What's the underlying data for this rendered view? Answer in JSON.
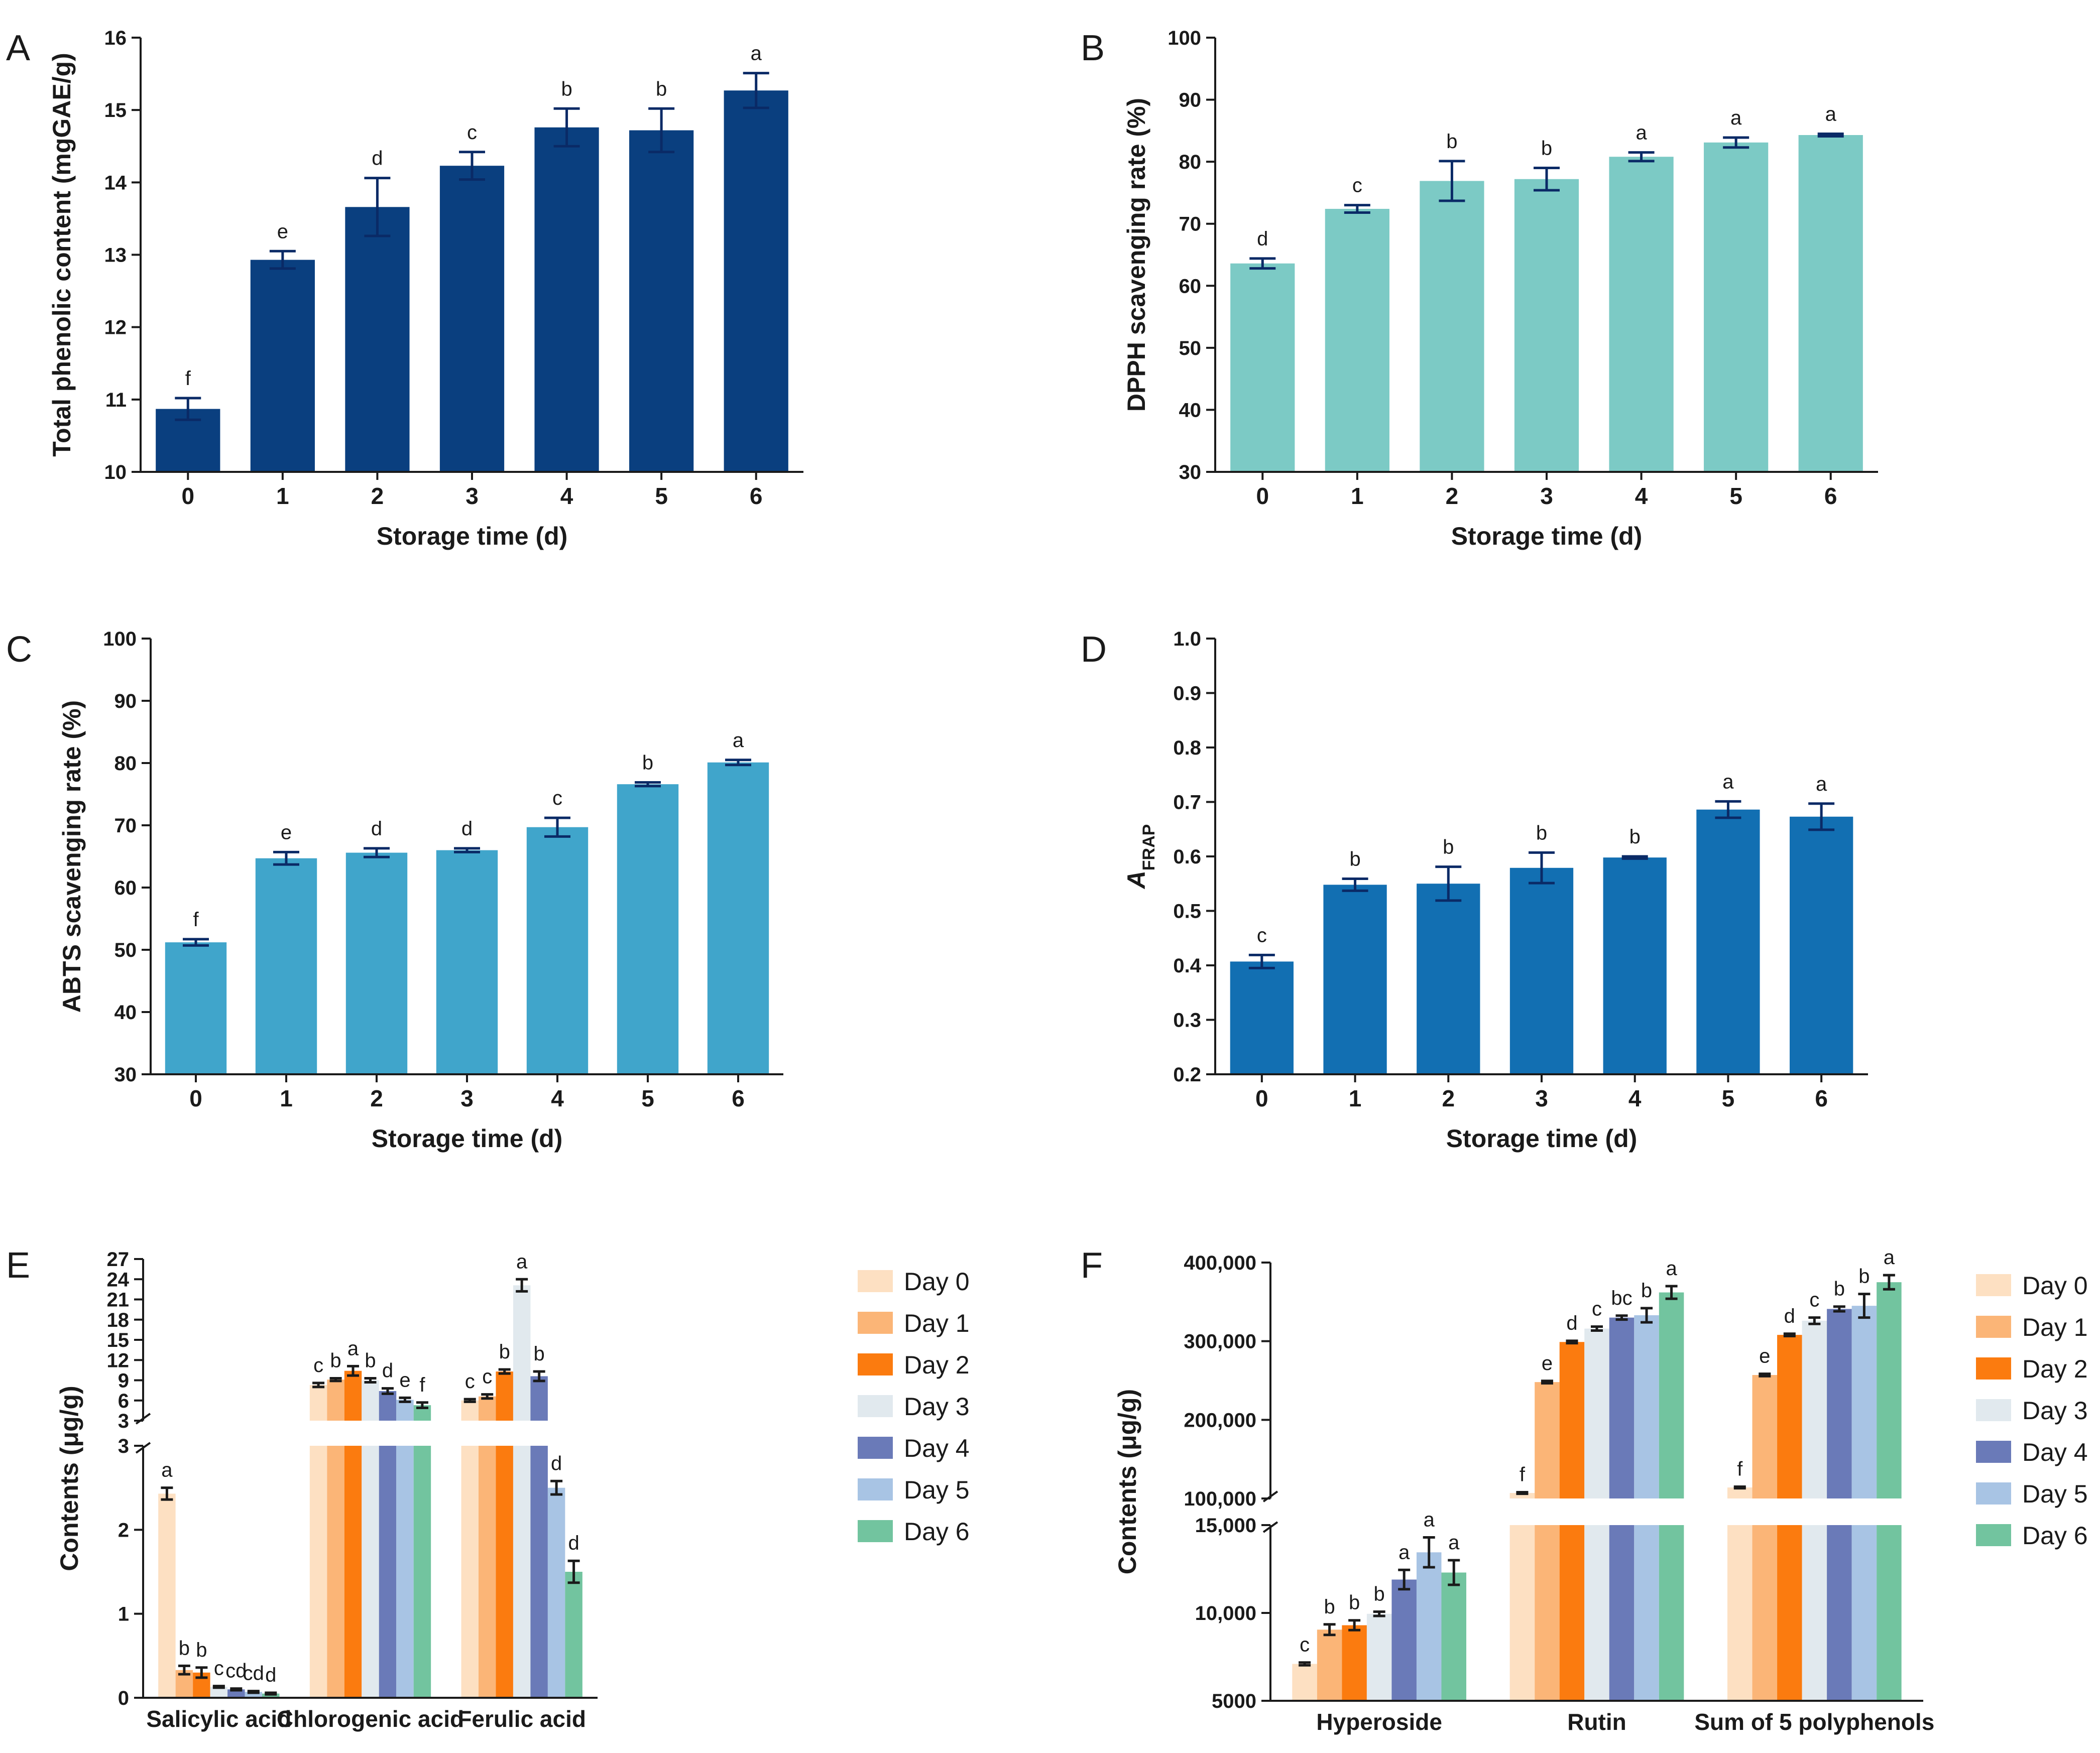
{
  "colors": {
    "A": "#0a3f7f",
    "B": "#7ccac5",
    "C": "#40a5cb",
    "D": "#126fb2",
    "error": "#0a2a66",
    "days": [
      "#fde0c2",
      "#fbb577",
      "#fb7b0f",
      "#e1e9ee",
      "#6a7ab8",
      "#a8c4e4",
      "#72c49f"
    ]
  },
  "chart_data": [
    {
      "panel": "A",
      "type": "bar",
      "xlabel": "Storage time (d)",
      "ylabel": "Total phenolic content (mgGAE/g)",
      "categories": [
        "0",
        "1",
        "2",
        "3",
        "4",
        "5",
        "6"
      ],
      "values": [
        10.87,
        12.93,
        13.66,
        14.23,
        14.76,
        14.72,
        15.27
      ],
      "errors": [
        0.15,
        0.12,
        0.4,
        0.19,
        0.26,
        0.3,
        0.24
      ],
      "letters": [
        "f",
        "e",
        "d",
        "c",
        "b",
        "b",
        "a"
      ],
      "ylim": [
        10,
        16
      ],
      "yticks": [
        "10",
        "11",
        "12",
        "13",
        "14",
        "15",
        "16"
      ]
    },
    {
      "panel": "B",
      "type": "bar",
      "xlabel": "Storage time (d)",
      "ylabel": "DPPH scavenging rate (%)",
      "categories": [
        "0",
        "1",
        "2",
        "3",
        "4",
        "5",
        "6"
      ],
      "values": [
        63.6,
        72.4,
        76.9,
        77.2,
        80.8,
        83.1,
        84.3
      ],
      "errors": [
        0.8,
        0.6,
        3.2,
        1.8,
        0.7,
        0.8,
        0.2
      ],
      "letters": [
        "d",
        "c",
        "b",
        "b",
        "a",
        "a",
        "a"
      ],
      "ylim": [
        30,
        100
      ],
      "yticks": [
        "30",
        "40",
        "50",
        "60",
        "70",
        "80",
        "90",
        "100"
      ]
    },
    {
      "panel": "C",
      "type": "bar",
      "xlabel": "Storage time (d)",
      "ylabel": "ABTS scavenging rate (%)",
      "categories": [
        "0",
        "1",
        "2",
        "3",
        "4",
        "5",
        "6"
      ],
      "values": [
        51.2,
        64.7,
        65.6,
        66.0,
        69.7,
        76.6,
        80.1
      ],
      "errors": [
        0.5,
        1.0,
        0.7,
        0.3,
        1.5,
        0.3,
        0.4
      ],
      "letters": [
        "f",
        "e",
        "d",
        "d",
        "c",
        "b",
        "a"
      ],
      "ylim": [
        30,
        100
      ],
      "yticks": [
        "30",
        "40",
        "50",
        "60",
        "70",
        "80",
        "90",
        "100"
      ]
    },
    {
      "panel": "D",
      "type": "bar",
      "xlabel": "Storage time (d)",
      "ylabel_main": "A",
      "ylabel_sub": "FRAP",
      "categories": [
        "0",
        "1",
        "2",
        "3",
        "4",
        "5",
        "6"
      ],
      "values": [
        0.407,
        0.548,
        0.55,
        0.579,
        0.598,
        0.686,
        0.673
      ],
      "errors": [
        0.012,
        0.011,
        0.031,
        0.028,
        0.002,
        0.015,
        0.024
      ],
      "letters": [
        "c",
        "b",
        "b",
        "b",
        "b",
        "a",
        "a"
      ],
      "ylim": [
        0.2,
        1.0
      ],
      "yticks": [
        "0.2",
        "0.3",
        "0.4",
        "0.5",
        "0.6",
        "0.7",
        "0.8",
        "0.9",
        "1.0"
      ]
    },
    {
      "panel": "E",
      "type": "bar",
      "ylabel": "Contents (μg/g)",
      "categories": [
        "Salicylic acid",
        "Chlorogenic acid",
        "Ferulic acid"
      ],
      "legend": [
        "Day 0",
        "Day 1",
        "Day 2",
        "Day 3",
        "Day 4",
        "Day 5",
        "Day 6"
      ],
      "axis_break": [
        3,
        3
      ],
      "lower_ylim": [
        0,
        3
      ],
      "upper_ylim": [
        3,
        27
      ],
      "lower_ticks": [
        "0",
        "1",
        "2",
        "3"
      ],
      "upper_ticks": [
        "3",
        "6",
        "9",
        "12",
        "15",
        "18",
        "21",
        "24",
        "27"
      ],
      "groups": [
        {
          "values": [
            2.43,
            0.33,
            0.3,
            0.13,
            0.1,
            0.07,
            0.05
          ],
          "errors": [
            0.07,
            0.05,
            0.06,
            0.01,
            0.01,
            0.01,
            0.01
          ],
          "letters": [
            "a",
            "b",
            "b",
            "c",
            "cd",
            "cd",
            "d"
          ]
        },
        {
          "values": [
            8.3,
            9.1,
            10.4,
            9.0,
            7.4,
            6.1,
            5.3
          ],
          "errors": [
            0.3,
            0.2,
            0.7,
            0.3,
            0.4,
            0.3,
            0.4
          ],
          "letters": [
            "c",
            "b",
            "a",
            "b",
            "d",
            "e",
            "f"
          ]
        },
        {
          "values": [
            6.0,
            6.6,
            10.3,
            23.1,
            9.6,
            2.5,
            1.5
          ],
          "errors": [
            0.2,
            0.3,
            0.3,
            0.9,
            0.7,
            0.08,
            0.13
          ],
          "letters": [
            "c",
            "c",
            "b",
            "a",
            "b",
            "d",
            "d"
          ]
        }
      ]
    },
    {
      "panel": "F",
      "type": "bar",
      "ylabel": "Contents (μg/g)",
      "categories": [
        "Hyperoside",
        "Rutin",
        "Sum of 5 polyphenols"
      ],
      "legend": [
        "Day 0",
        "Day 1",
        "Day 2",
        "Day 3",
        "Day 4",
        "Day 5",
        "Day 6"
      ],
      "axis_break": [
        15000,
        100000
      ],
      "lower_ylim": [
        5000,
        15000
      ],
      "upper_ylim": [
        100000,
        400000
      ],
      "lower_ticks": [
        "5000",
        "10,000",
        "15,000"
      ],
      "upper_ticks": [
        "100,000",
        "200,000",
        "300,000",
        "400,000"
      ],
      "groups": [
        {
          "values": [
            7100,
            9050,
            9300,
            9950,
            11900,
            13450,
            12300
          ],
          "errors": [
            80,
            300,
            280,
            120,
            550,
            850,
            700
          ],
          "letters": [
            "c",
            "b",
            "b",
            "b",
            "a",
            "a",
            "a"
          ]
        },
        {
          "values": [
            107000,
            248000,
            299000,
            316000,
            330000,
            333000,
            362000
          ],
          "errors": [
            1000,
            1500,
            1500,
            2500,
            2500,
            9000,
            8000
          ],
          "letters": [
            "f",
            "e",
            "d",
            "c",
            "bc",
            "b",
            "a"
          ]
        },
        {
          "values": [
            114000,
            257000,
            308000,
            326000,
            341000,
            345000,
            375000
          ],
          "errors": [
            1000,
            1500,
            1500,
            4000,
            3000,
            15000,
            9000
          ],
          "letters": [
            "f",
            "e",
            "d",
            "c",
            "b",
            "b",
            "a"
          ]
        }
      ]
    }
  ]
}
